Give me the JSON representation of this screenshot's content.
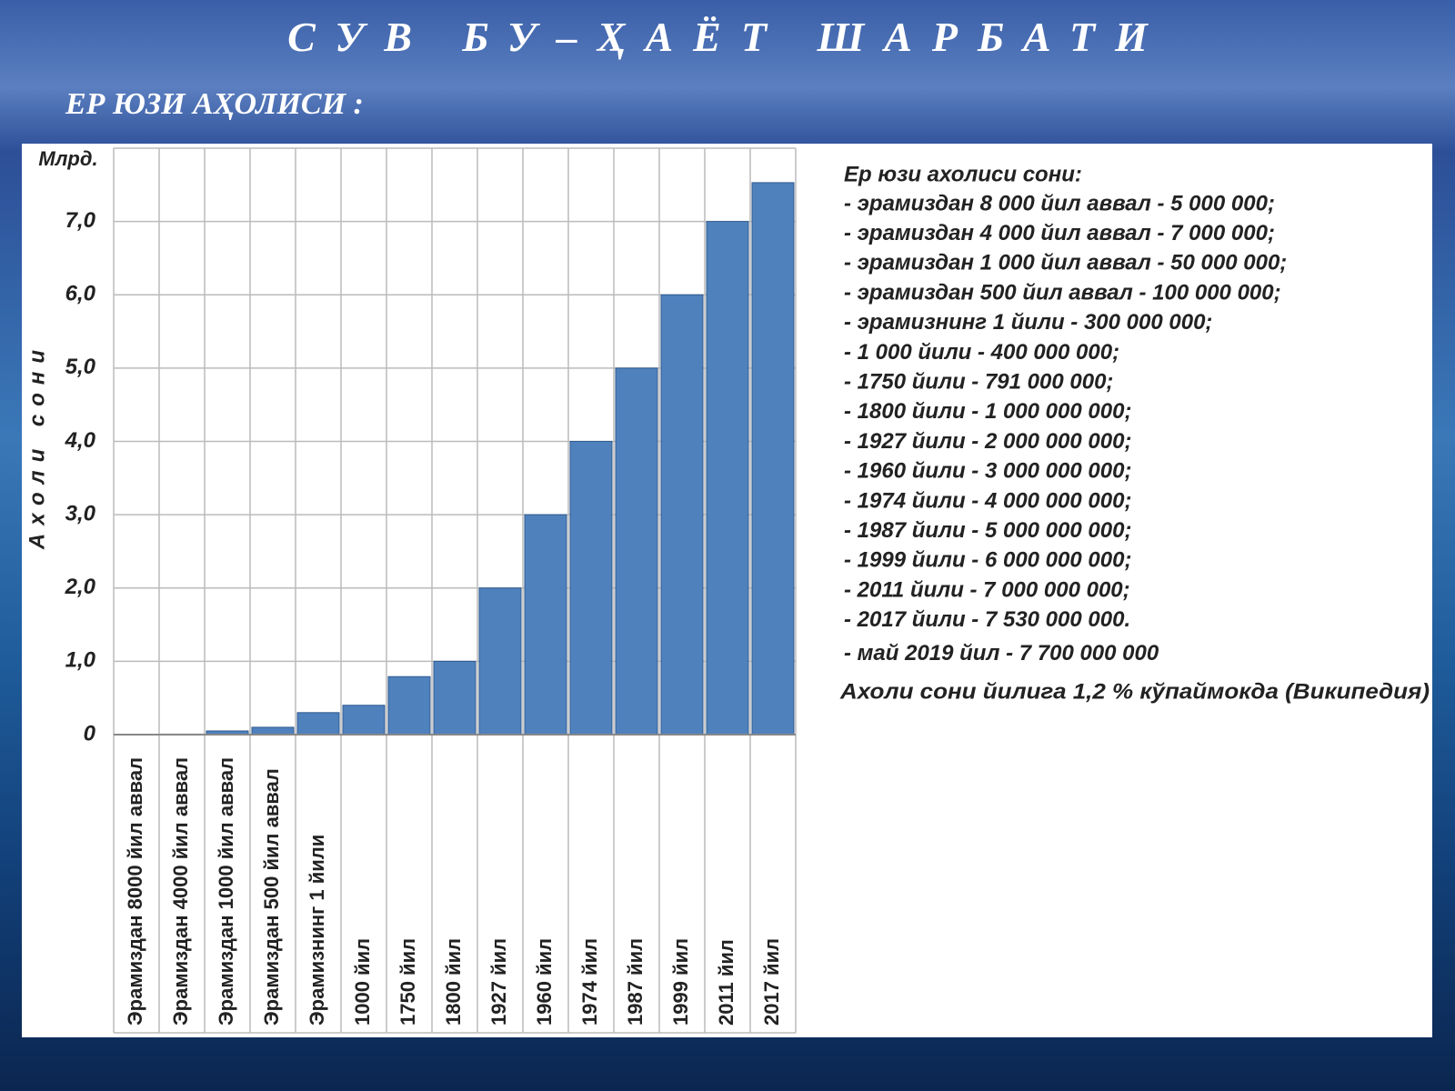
{
  "header": {
    "title": "СУВ БУ–ҲАЁТ ШАРБАТИ",
    "subtitle": "ЕР ЮЗИ АҲОЛИСИ :"
  },
  "chart_data": {
    "type": "bar",
    "unit_label": "Млрд.",
    "ylabel": "Ахоли сони",
    "categories": [
      "Эрамиздан 8000 йил аввал",
      "Эрамиздан 4000 йил аввал",
      "Эрамиздан 1000 йил аввал",
      "Эрамиздан 500 йил аввал",
      "Эрамизнинг 1 йили",
      "1000 йил",
      "1750 йил",
      "1800 йил",
      "1927 йил",
      "1960 йил",
      "1974 йил",
      "1987 йил",
      "1999 йил",
      "2011 йил",
      "2017 йил"
    ],
    "values": [
      0.005,
      0.007,
      0.05,
      0.1,
      0.3,
      0.4,
      0.791,
      1,
      2,
      3,
      4,
      5,
      6,
      7,
      7.53
    ],
    "color": "#4f81bd",
    "ylim": [
      0,
      8
    ],
    "yticks": [
      0,
      {
        "value": 1,
        "label": "1,0"
      },
      {
        "value": 2,
        "label": "2,0"
      },
      {
        "value": 3,
        "label": "3,0"
      },
      {
        "value": 4,
        "label": "4,0"
      },
      {
        "value": 5,
        "label": "5,0"
      },
      {
        "value": 6,
        "label": "6,0"
      },
      {
        "value": 7,
        "label": "7,0"
      }
    ],
    "grid": true
  },
  "notes": {
    "heading": "Ер юзи ахолиси сони:",
    "lines": [
      "- эрамиздан 8 000 йил аввал - 5 000 000;",
      "- эрамиздан 4 000 йил аввал - 7 000 000;",
      "- эрамиздан 1 000 йил аввал - 50 000 000;",
      "- эрамиздан 500 йил аввал - 100 000 000;",
      "- эрамизнинг 1 йили - 300 000 000;",
      "- 1 000 йили - 400 000 000;",
      "- 1750 йили - 791 000 000;",
      "- 1800 йили - 1 000 000 000;",
      "- 1927 йили - 2 000 000 000;",
      "- 1960 йили - 3 000 000 000;",
      "- 1974 йили - 4 000 000 000;",
      "- 1987 йили - 5 000 000 000;",
      "- 1999 йили - 6 000 000 000;",
      "- 2011 йили - 7 000 000 000;",
      "- 2017 йили - 7 530 000 000.",
      "- май 2019 йил - 7 700 000 000"
    ],
    "footnote": "Ахоли сони йилига  1,2 % кўпаймокда (Википедия)"
  }
}
